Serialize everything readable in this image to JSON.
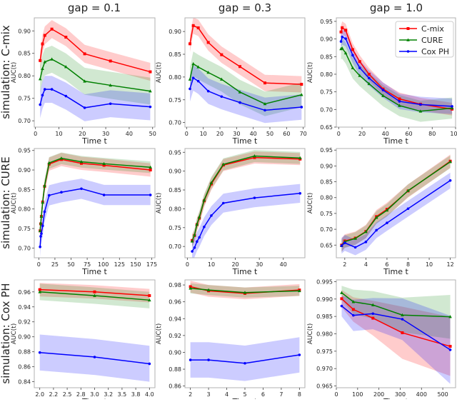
{
  "column_titles": [
    "gap = 0.1",
    "gap = 0.3",
    "gap = 1.0"
  ],
  "row_titles": [
    "simulation: C-mix",
    "simulation: CURE",
    "simulation: Cox PH"
  ],
  "legend": {
    "placement": "top-right of top-right panel",
    "entries": [
      {
        "name": "C-mix",
        "color": "#ff0000",
        "marker": "square"
      },
      {
        "name": "CURE",
        "color": "#008000",
        "marker": "triangle"
      },
      {
        "name": "Cox PH",
        "color": "#0000ff",
        "marker": "circle"
      }
    ]
  },
  "chart_data": [
    {
      "type": "line",
      "row": 0,
      "col": 0,
      "xlabel": "Time t",
      "ylabel": "AUC(t)",
      "xlim": [
        -0.5,
        51
      ],
      "ylim": [
        0.686,
        0.929
      ],
      "xticks": [
        "0",
        "10",
        "20",
        "30",
        "40",
        "50"
      ],
      "yticks": [
        "0.70",
        "0.75",
        "0.80",
        "0.85",
        "0.90"
      ],
      "x": [
        2,
        3,
        4,
        7,
        13,
        21,
        32,
        49
      ],
      "series": [
        {
          "name": "C-mix",
          "values": [
            0.834,
            0.871,
            0.89,
            0.904,
            0.886,
            0.849,
            0.833,
            0.809
          ],
          "band": 0.02
        },
        {
          "name": "CURE",
          "values": [
            0.793,
            0.816,
            0.831,
            0.837,
            0.82,
            0.788,
            0.779,
            0.766
          ],
          "band": 0.03
        },
        {
          "name": "Cox PH",
          "values": [
            0.736,
            0.757,
            0.77,
            0.77,
            0.755,
            0.729,
            0.738,
            0.731
          ],
          "band": 0.03
        }
      ]
    },
    {
      "type": "line",
      "row": 0,
      "col": 1,
      "xlabel": "Time t",
      "ylabel": "AUC(t)",
      "xlim": [
        -1,
        71
      ],
      "ylim": [
        0.69,
        0.93
      ],
      "xticks": [
        "0",
        "10",
        "20",
        "30",
        "40",
        "50",
        "60",
        "70"
      ],
      "yticks": [
        "0.70",
        "0.75",
        "0.80",
        "0.85",
        "0.90"
      ],
      "x": [
        2,
        4,
        7,
        13,
        21,
        32,
        47,
        69
      ],
      "series": [
        {
          "name": "C-mix",
          "values": [
            0.873,
            0.913,
            0.908,
            0.876,
            0.849,
            0.823,
            0.787,
            0.784
          ],
          "band": 0.018
        },
        {
          "name": "CURE",
          "values": [
            0.795,
            0.829,
            0.822,
            0.81,
            0.795,
            0.767,
            0.741,
            0.761
          ],
          "band": 0.027
        },
        {
          "name": "Cox PH",
          "values": [
            0.774,
            0.798,
            0.791,
            0.769,
            0.757,
            0.744,
            0.727,
            0.734
          ],
          "band": 0.028
        }
      ]
    },
    {
      "type": "line",
      "row": 0,
      "col": 2,
      "xlabel": "Time t",
      "ylabel": "AUC(t)",
      "xlim": [
        -2,
        100
      ],
      "ylim": [
        0.65,
        0.96
      ],
      "xticks": [
        "0",
        "20",
        "40",
        "60",
        "80",
        "100"
      ],
      "yticks": [
        "0.65",
        "0.70",
        "0.75",
        "0.80",
        "0.85",
        "0.90",
        "0.95"
      ],
      "x": [
        2,
        3,
        6,
        12,
        18,
        26,
        38,
        52,
        70,
        97
      ],
      "series": [
        {
          "name": "C-mix",
          "values": [
            0.92,
            0.932,
            0.925,
            0.87,
            0.836,
            0.8,
            0.758,
            0.73,
            0.715,
            0.701
          ],
          "band": 0.018
        },
        {
          "name": "CURE",
          "values": [
            0.872,
            0.874,
            0.86,
            0.818,
            0.796,
            0.773,
            0.739,
            0.711,
            0.695,
            0.704
          ],
          "band": 0.03
        },
        {
          "name": "Cox PH",
          "values": [
            0.893,
            0.906,
            0.901,
            0.854,
            0.818,
            0.789,
            0.755,
            0.723,
            0.714,
            0.709
          ],
          "band": 0.022
        }
      ]
    },
    {
      "type": "line",
      "row": 1,
      "col": 0,
      "xlabel": "Time t",
      "ylabel": "AUC(t)",
      "xlim": [
        -7,
        180
      ],
      "ylim": [
        0.675,
        0.955
      ],
      "xticks": [
        "0",
        "25",
        "50",
        "75",
        "100",
        "125",
        "150",
        "175"
      ],
      "yticks": [
        "0.70",
        "0.75",
        "0.80",
        "0.85",
        "0.90",
        "0.95"
      ],
      "x": [
        2,
        3,
        4,
        6,
        9,
        16,
        35,
        66,
        101,
        173
      ],
      "series": [
        {
          "name": "C-mix",
          "values": [
            0.744,
            0.762,
            0.781,
            0.818,
            0.858,
            0.915,
            0.927,
            0.917,
            0.912,
            0.9
          ],
          "band": 0.017
        },
        {
          "name": "CURE",
          "values": [
            0.744,
            0.764,
            0.781,
            0.817,
            0.86,
            0.918,
            0.93,
            0.921,
            0.916,
            0.907
          ],
          "band": 0.015
        },
        {
          "name": "Cox PH",
          "values": [
            0.703,
            0.73,
            0.737,
            0.757,
            0.793,
            0.835,
            0.843,
            0.852,
            0.836,
            0.836
          ],
          "band": 0.026
        }
      ]
    },
    {
      "type": "line",
      "row": 1,
      "col": 1,
      "xlabel": "Time t",
      "ylabel": "AUC(t)",
      "xlim": [
        -1,
        49
      ],
      "ylim": [
        0.67,
        0.96
      ],
      "xticks": [
        "0",
        "10",
        "20",
        "30",
        "40"
      ],
      "yticks": [
        "0.70",
        "0.75",
        "0.80",
        "0.85",
        "0.90",
        "0.95"
      ],
      "x": [
        2,
        3,
        4,
        5,
        7,
        10,
        15,
        28,
        47
      ],
      "series": [
        {
          "name": "C-mix",
          "values": [
            0.716,
            0.729,
            0.758,
            0.775,
            0.821,
            0.866,
            0.916,
            0.936,
            0.932
          ],
          "band": 0.016
        },
        {
          "name": "CURE",
          "values": [
            0.714,
            0.731,
            0.759,
            0.778,
            0.823,
            0.869,
            0.918,
            0.94,
            0.935
          ],
          "band": 0.016
        },
        {
          "name": "Cox PH",
          "values": [
            0.687,
            0.697,
            0.713,
            0.724,
            0.752,
            0.782,
            0.815,
            0.829,
            0.841
          ],
          "band": 0.025
        }
      ]
    },
    {
      "type": "line",
      "row": 1,
      "col": 2,
      "xlabel": "Time t",
      "ylabel": "AUC(t)",
      "xlim": [
        1.2,
        12.5
      ],
      "ylim": [
        0.61,
        0.955
      ],
      "xticks": [
        "2",
        "4",
        "6",
        "8",
        "10",
        "12"
      ],
      "yticks": [
        "0.65",
        "0.70",
        "0.75",
        "0.80",
        "0.85",
        "0.90",
        "0.95"
      ],
      "x": [
        1.7,
        2,
        3,
        4,
        5,
        6,
        8,
        12
      ],
      "series": [
        {
          "name": "C-mix",
          "values": [
            0.65,
            0.663,
            0.672,
            0.693,
            0.74,
            0.763,
            0.821,
            0.915
          ],
          "band": 0.021
        },
        {
          "name": "CURE",
          "values": [
            0.648,
            0.661,
            0.671,
            0.692,
            0.737,
            0.76,
            0.822,
            0.913
          ],
          "band": 0.02
        },
        {
          "name": "Cox PH",
          "values": [
            0.648,
            0.657,
            0.643,
            0.66,
            0.697,
            0.72,
            0.765,
            0.854
          ],
          "band": 0.025
        }
      ]
    },
    {
      "type": "line",
      "row": 2,
      "col": 0,
      "xlabel": "Time t",
      "ylabel": "AUC(t)",
      "xlim": [
        1.9,
        4.1
      ],
      "ylim": [
        0.832,
        0.976
      ],
      "xticks": [
        {
          "v": 2.0,
          "label": "2.0"
        },
        {
          "v": 2.25,
          "label": "2.2"
        },
        {
          "v": 2.5,
          "label": "2.5"
        },
        {
          "v": 2.75,
          "label": "2.8"
        },
        {
          "v": 3.0,
          "label": "3.0"
        },
        {
          "v": 3.25,
          "label": "3.2"
        },
        {
          "v": 3.5,
          "label": "3.5"
        },
        {
          "v": 3.75,
          "label": "3.8"
        },
        {
          "v": 4.0,
          "label": "4.0"
        }
      ],
      "yticks": [
        "0.84",
        "0.86",
        "0.88",
        "0.90",
        "0.92",
        "0.94",
        "0.96"
      ],
      "x": [
        2,
        3,
        4
      ],
      "series": [
        {
          "name": "C-mix",
          "values": [
            0.963,
            0.96,
            0.955
          ],
          "band": 0.009
        },
        {
          "name": "CURE",
          "values": [
            0.96,
            0.955,
            0.949
          ],
          "band": 0.011
        },
        {
          "name": "Cox PH",
          "values": [
            0.879,
            0.873,
            0.864
          ],
          "band": 0.024
        }
      ]
    },
    {
      "type": "line",
      "row": 2,
      "col": 1,
      "xlabel": "Time t",
      "ylabel": "AUC(t)",
      "xlim": [
        1.7,
        8.3
      ],
      "ylim": [
        0.858,
        0.986
      ],
      "xticks": [
        "2",
        "3",
        "4",
        "5",
        "6",
        "7",
        "8"
      ],
      "yticks": [
        "0.86",
        "0.88",
        "0.90",
        "0.92",
        "0.94",
        "0.96",
        "0.98"
      ],
      "x": [
        2,
        3,
        5,
        8
      ],
      "series": [
        {
          "name": "C-mix",
          "values": [
            0.978,
            0.973,
            0.97,
            0.974
          ],
          "band": 0.007
        },
        {
          "name": "CURE",
          "values": [
            0.976,
            0.974,
            0.971,
            0.973
          ],
          "band": 0.006
        },
        {
          "name": "Cox PH",
          "values": [
            0.891,
            0.891,
            0.887,
            0.897
          ],
          "band": 0.021
        }
      ]
    },
    {
      "type": "line",
      "row": 2,
      "col": 2,
      "xlabel": "Time t",
      "ylabel": "AUC(t)",
      "xlim": [
        0,
        560
      ],
      "ylim": [
        0.9645,
        0.9955
      ],
      "xticks": [
        "0",
        "100",
        "200",
        "300",
        "400",
        "500"
      ],
      "yticks": [
        "0.965",
        "0.970",
        "0.975",
        "0.980",
        "0.985",
        "0.990",
        "0.995"
      ],
      "x": [
        25,
        80,
        172,
        310,
        535
      ],
      "series": [
        {
          "name": "C-mix",
          "values": [
            0.9901,
            0.987,
            0.9845,
            0.9803,
            0.9764
          ],
          "band": [
            0.0025,
            0.0035,
            0.005,
            0.0075,
            0.0085
          ]
        },
        {
          "name": "CURE",
          "values": [
            0.9918,
            0.9892,
            0.9883,
            0.9854,
            0.9849
          ],
          "band": [
            0.002,
            0.0035,
            0.004,
            0.005,
            0.0063
          ]
        },
        {
          "name": "Cox PH",
          "values": [
            0.988,
            0.9853,
            0.9858,
            0.9842,
            0.9754
          ],
          "band": [
            0.003,
            0.0045,
            0.0045,
            0.006,
            0.0098
          ]
        }
      ]
    }
  ]
}
